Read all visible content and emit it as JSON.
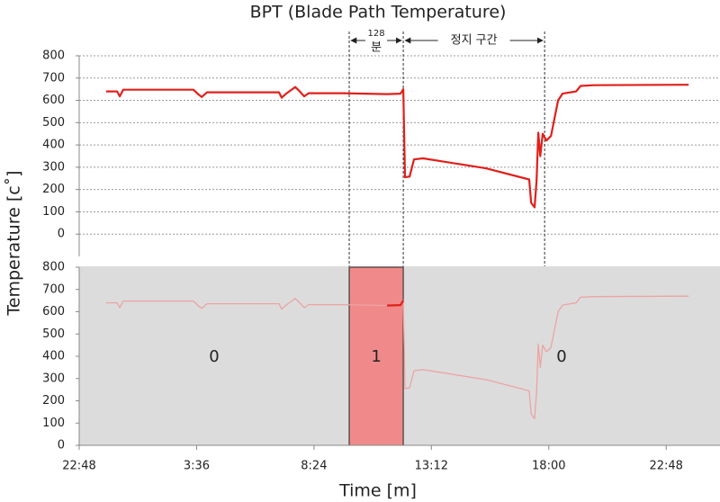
{
  "chart_data": [
    {
      "type": "line",
      "title": "BPT (Blade Path Temperature)",
      "ylabel": "Temperature [c˚]",
      "xlim": [
        0,
        26.2
      ],
      "ylim": [
        -100,
        800
      ],
      "yticks": [
        0,
        100,
        200,
        300,
        400,
        500,
        600,
        700,
        800
      ],
      "grid": true,
      "x": [
        1.1,
        1.55,
        1.66,
        1.8,
        4.67,
        4.86,
        5.01,
        5.23,
        8.17,
        8.28,
        8.46,
        8.65,
        8.83,
        9.02,
        9.2,
        9.38,
        10.75,
        12.59,
        13.14,
        13.25,
        13.32,
        13.51,
        13.69,
        14.06,
        16.63,
        18.4,
        18.48,
        18.62,
        18.7,
        18.77,
        18.85,
        18.95,
        19.1,
        19.29,
        19.58,
        19.76,
        20.32,
        20.5,
        21.05,
        24.92
      ],
      "series": [
        {
          "color": "#e0201b",
          "values": [
            640,
            640,
            618,
            648,
            648,
            628,
            615,
            636,
            636,
            612,
            630,
            645,
            660,
            640,
            618,
            632,
            632,
            628,
            630,
            650,
            255,
            258,
            335,
            340,
            295,
            245,
            140,
            120,
            240,
            455,
            350,
            450,
            420,
            440,
            600,
            630,
            640,
            665,
            668,
            670
          ]
        }
      ],
      "vlines": [
        11.04,
        13.25,
        19.03
      ],
      "annotations": [
        {
          "text": "128",
          "from": 11.04,
          "to": 13.25
        },
        {
          "text": "분",
          "from": 11.04,
          "to": 13.25
        },
        {
          "text": "정지 구간",
          "from": 13.25,
          "to": 19.03
        }
      ]
    },
    {
      "type": "line",
      "xlabel": "Time [m]",
      "background": "#dcdcdc",
      "xlim": [
        0,
        26.2
      ],
      "ylim": [
        0,
        800
      ],
      "yticks": [
        0,
        100,
        200,
        300,
        400,
        500,
        600,
        700,
        800
      ],
      "xticks": [
        {
          "value": 0,
          "label": "22:48"
        },
        {
          "value": 4.8,
          "label": "3:36"
        },
        {
          "value": 9.6,
          "label": "8:24"
        },
        {
          "value": 14.4,
          "label": "13:12"
        },
        {
          "value": 19.2,
          "label": "18:00"
        },
        {
          "value": 24,
          "label": "22:48"
        }
      ],
      "x": [
        1.1,
        1.55,
        1.66,
        1.8,
        4.67,
        4.86,
        5.01,
        5.23,
        8.17,
        8.28,
        8.46,
        8.65,
        8.83,
        9.02,
        9.2,
        9.38,
        10.75,
        12.59,
        13.14,
        13.25,
        13.32,
        13.51,
        13.69,
        14.06,
        16.63,
        18.4,
        18.48,
        18.62,
        18.7,
        18.77,
        18.85,
        18.95,
        19.1,
        19.29,
        19.58,
        19.76,
        20.32,
        20.5,
        21.05,
        24.92
      ],
      "series": [
        {
          "color": "#eda3a3",
          "values": [
            640,
            640,
            618,
            648,
            648,
            628,
            615,
            636,
            636,
            612,
            630,
            645,
            660,
            640,
            618,
            632,
            632,
            628,
            630,
            650,
            255,
            258,
            335,
            340,
            295,
            245,
            140,
            120,
            240,
            455,
            350,
            450,
            420,
            440,
            600,
            630,
            640,
            665,
            668,
            670
          ]
        }
      ],
      "regions": [
        {
          "label": "0",
          "from": 0,
          "to": 11.04
        },
        {
          "label": "1",
          "from": 11.04,
          "to": 13.25,
          "color": "#f08a8a",
          "line_color": "#e0201b"
        },
        {
          "label": "0",
          "from": 13.25,
          "to": 26.2
        }
      ]
    }
  ]
}
